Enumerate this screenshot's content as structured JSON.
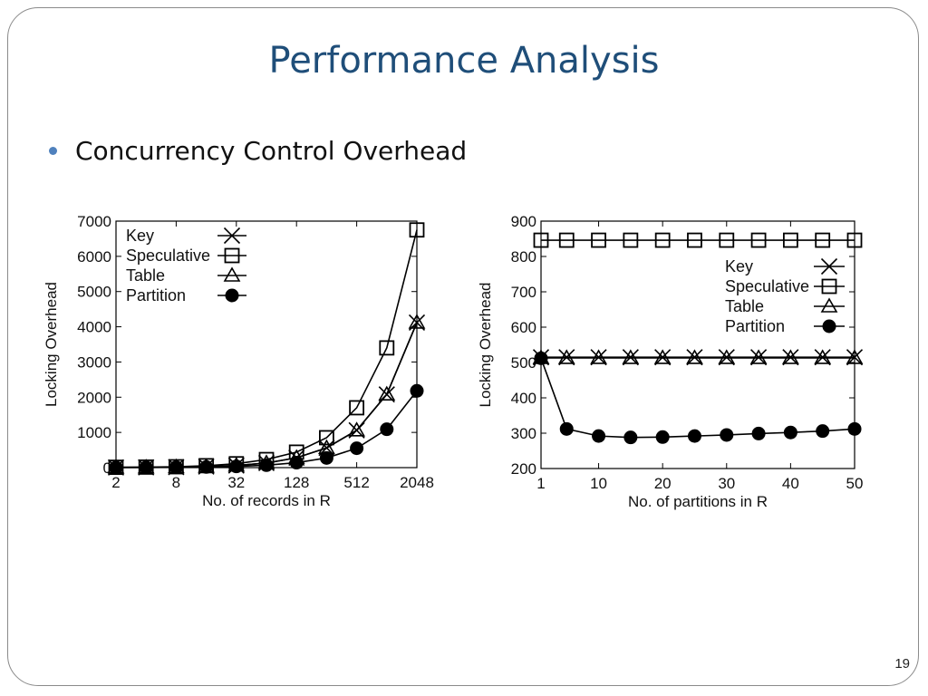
{
  "slide": {
    "title": "Performance Analysis",
    "bullet": "Concurrency Control Overhead",
    "page_number": "19"
  },
  "chart_data": [
    {
      "type": "line",
      "xlabel": "No. of records in R",
      "ylabel": "Locking Overhead",
      "x_scale": "log2",
      "x": [
        2,
        4,
        8,
        16,
        32,
        64,
        128,
        256,
        512,
        1024,
        2048
      ],
      "x_ticks": [
        2,
        8,
        32,
        128,
        512,
        2048
      ],
      "y_ticks": [
        0,
        1000,
        2000,
        3000,
        4000,
        5000,
        6000,
        7000
      ],
      "ylim": [
        0,
        7000
      ],
      "legend": "top-left",
      "grid": false,
      "series": [
        {
          "name": "Key",
          "marker": "x",
          "values": [
            5,
            8,
            15,
            30,
            60,
            130,
            280,
            560,
            1060,
            2080,
            4120
          ]
        },
        {
          "name": "Speculative",
          "marker": "square",
          "values": [
            10,
            15,
            25,
            55,
            110,
            230,
            440,
            850,
            1700,
            3400,
            6750
          ]
        },
        {
          "name": "Table",
          "marker": "triangle",
          "values": [
            5,
            8,
            15,
            30,
            60,
            130,
            280,
            560,
            1060,
            2080,
            4120
          ]
        },
        {
          "name": "Partition",
          "marker": "circle",
          "values": [
            3,
            5,
            10,
            18,
            35,
            70,
            140,
            275,
            550,
            1090,
            2180
          ]
        }
      ]
    },
    {
      "type": "line",
      "xlabel": "No. of partitions in R",
      "ylabel": "Locking Overhead",
      "x": [
        1,
        5,
        10,
        15,
        20,
        25,
        30,
        35,
        40,
        45,
        50
      ],
      "x_ticks": [
        1,
        10,
        20,
        30,
        40,
        50
      ],
      "y_ticks": [
        200,
        300,
        400,
        500,
        600,
        700,
        800,
        900
      ],
      "xlim": [
        1,
        50
      ],
      "ylim": [
        200,
        900
      ],
      "legend": "top-right",
      "grid": false,
      "series": [
        {
          "name": "Key",
          "marker": "x",
          "values": [
            515,
            515,
            515,
            515,
            515,
            515,
            515,
            515,
            515,
            515,
            515
          ]
        },
        {
          "name": "Speculative",
          "marker": "square",
          "values": [
            846,
            846,
            846,
            846,
            846,
            846,
            846,
            846,
            846,
            846,
            846
          ]
        },
        {
          "name": "Table",
          "marker": "triangle",
          "values": [
            513,
            513,
            513,
            513,
            513,
            513,
            513,
            513,
            513,
            513,
            513
          ]
        },
        {
          "name": "Partition",
          "marker": "circle",
          "values": [
            512,
            312,
            292,
            288,
            289,
            292,
            295,
            299,
            302,
            306,
            312
          ]
        }
      ]
    }
  ]
}
